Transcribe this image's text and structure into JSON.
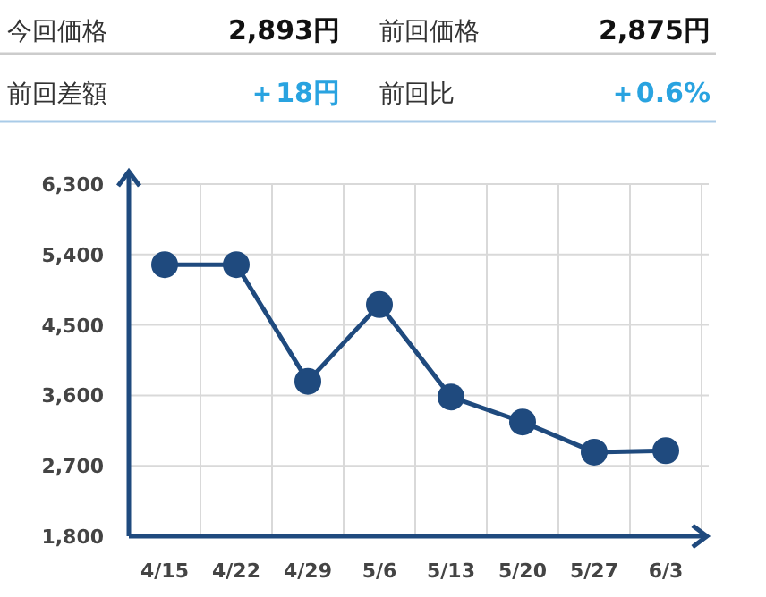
{
  "chart_data": [
    {
      "type": "other",
      "annotations": [
        "今回価格",
        "2,893円",
        "前回価格",
        "2,875円",
        "前回差額",
        "＋18円",
        "前回比",
        "＋0.6%"
      ],
      "colors": [
        "#333333",
        "#111111",
        "#333333",
        "#111111",
        "#333333",
        "#29a3e0",
        "#333333",
        "#29a3e0"
      ]
    },
    {
      "type": "line",
      "categories": [
        "4/15",
        "4/22",
        "4/29",
        "5/6",
        "5/13",
        "5/20",
        "5/27",
        "6/3"
      ],
      "series": [
        {
          "color": "#1f4a7e",
          "values": [
            5270,
            5270,
            3780,
            4760,
            3580,
            3260,
            2875,
            2893
          ]
        }
      ],
      "ylim": [
        1800,
        6300
      ],
      "yticks": [
        {
          "value": 1800,
          "label": "1,800"
        },
        {
          "value": 2700,
          "label": "2,700"
        },
        {
          "value": 3600,
          "label": "3,600"
        },
        {
          "value": 4500,
          "label": "4,500"
        },
        {
          "value": 5400,
          "label": "5,400"
        },
        {
          "value": 6300,
          "label": "6,300"
        }
      ],
      "grid": true,
      "marker": "circle",
      "line_style": "solid"
    }
  ]
}
